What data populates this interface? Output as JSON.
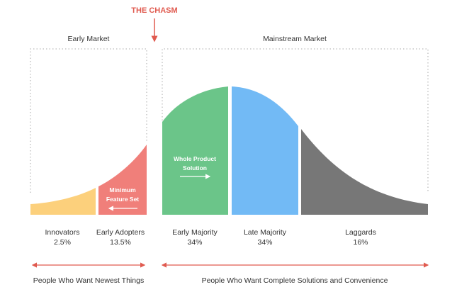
{
  "chasm": {
    "label": "THE CHASM",
    "color": "#e05a4f"
  },
  "markets": {
    "early": "Early Market",
    "mainstream": "Mainstream Market"
  },
  "segments": [
    {
      "name": "Innovators",
      "share": "2.5%",
      "color": "#fcd07c"
    },
    {
      "name": "Early Adopters",
      "share": "13.5%",
      "color": "#f07f7a"
    },
    {
      "name": "Early Majority",
      "share": "34%",
      "color": "#6bc589"
    },
    {
      "name": "Late Majority",
      "share": "34%",
      "color": "#72baf5"
    },
    {
      "name": "Laggards",
      "share": "16%",
      "color": "#777777"
    }
  ],
  "inner_labels": {
    "minimum_feature_set": [
      "Minimum",
      "Feature Set"
    ],
    "whole_product_solution": [
      "Whole Product",
      "Solution"
    ]
  },
  "bottom": {
    "early": "People Who Want Newest Things",
    "mainstream": "People Who Want Complete Solutions and Convenience",
    "arrow_color": "#e05a4f"
  }
}
